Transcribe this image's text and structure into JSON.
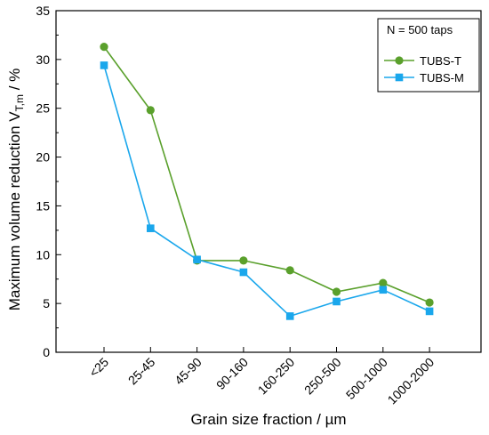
{
  "chart_data": {
    "type": "line",
    "categories": [
      "<25",
      "25-45",
      "45-90",
      "90-160",
      "160-250",
      "250-500",
      "500-1000",
      "1000-2000"
    ],
    "series": [
      {
        "name": "TUBS-T",
        "values": [
          31.3,
          24.8,
          9.4,
          9.4,
          8.4,
          6.2,
          7.1,
          5.1
        ],
        "color": "#5aa02c",
        "marker": "circle"
      },
      {
        "name": "TUBS-M",
        "values": [
          29.4,
          12.7,
          9.5,
          8.2,
          3.7,
          5.2,
          6.4,
          4.2
        ],
        "color": "#1aa7ec",
        "marker": "square"
      }
    ],
    "ylim": [
      0,
      35
    ],
    "yticks": [
      "0",
      "5",
      "10",
      "15",
      "20",
      "25",
      "30",
      "35"
    ],
    "xlabel": "Grain size fraction / µm",
    "ylabel_main": "Maximum volume reduction V",
    "ylabel_sub": "T,m",
    "ylabel_unit": " / %",
    "annotation": "N = 500 taps",
    "legend_placement": "top-right",
    "grid": false
  }
}
